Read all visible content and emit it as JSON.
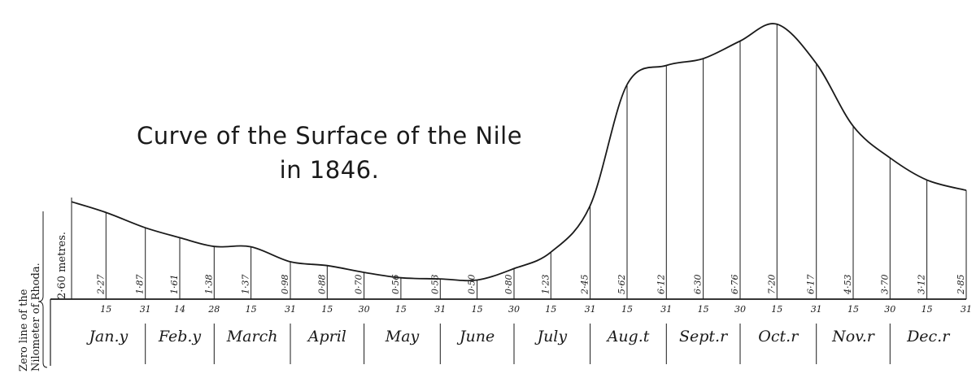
{
  "chart_data": {
    "type": "line",
    "title_lines": [
      "Curve of the Surface of the Nile",
      "in 1846."
    ],
    "side_label_lines": [
      "Zero line of the",
      "Nilometer of Rhoda."
    ],
    "scale_label": "2·60 metres.",
    "x_tick_labels": [
      "15",
      "31",
      "14",
      "28",
      "15",
      "31",
      "15",
      "30",
      "15",
      "31",
      "15",
      "30",
      "15",
      "31",
      "15",
      "31",
      "15",
      "30",
      "15",
      "31",
      "15",
      "30",
      "15",
      "31"
    ],
    "months": [
      "Jan.y",
      "Feb.y",
      "March",
      "April",
      "May",
      "June",
      "July",
      "Aug.t",
      "Sept.r",
      "Oct.r",
      "Nov.r",
      "Dec.r"
    ],
    "series": [
      {
        "day_of_year": [
          1,
          15,
          31,
          45,
          59,
          74,
          90,
          105,
          120,
          135,
          151,
          166,
          181,
          196,
          212,
          227,
          243,
          258,
          273,
          288,
          304,
          319,
          334,
          349,
          365
        ],
        "value_labels": [
          "",
          "2·27",
          "1·87",
          "1·61",
          "1·38",
          "1·37",
          "0·98",
          "0·88",
          "0·70",
          "0·56",
          "0·53",
          "0·50",
          "0·80",
          "1·23",
          "2·45",
          "5·62",
          "6·12",
          "6·30",
          "6·76",
          "7·20",
          "6·17",
          "4·53",
          "3·70",
          "3·12",
          "2·85"
        ],
        "values": [
          2.55,
          2.27,
          1.87,
          1.61,
          1.38,
          1.37,
          0.98,
          0.88,
          0.7,
          0.56,
          0.53,
          0.5,
          0.8,
          1.23,
          2.45,
          5.62,
          6.12,
          6.3,
          6.76,
          7.2,
          6.17,
          4.53,
          3.7,
          3.12,
          2.85
        ]
      }
    ],
    "ylim": [
      0,
      7.6
    ],
    "grid": false
  }
}
